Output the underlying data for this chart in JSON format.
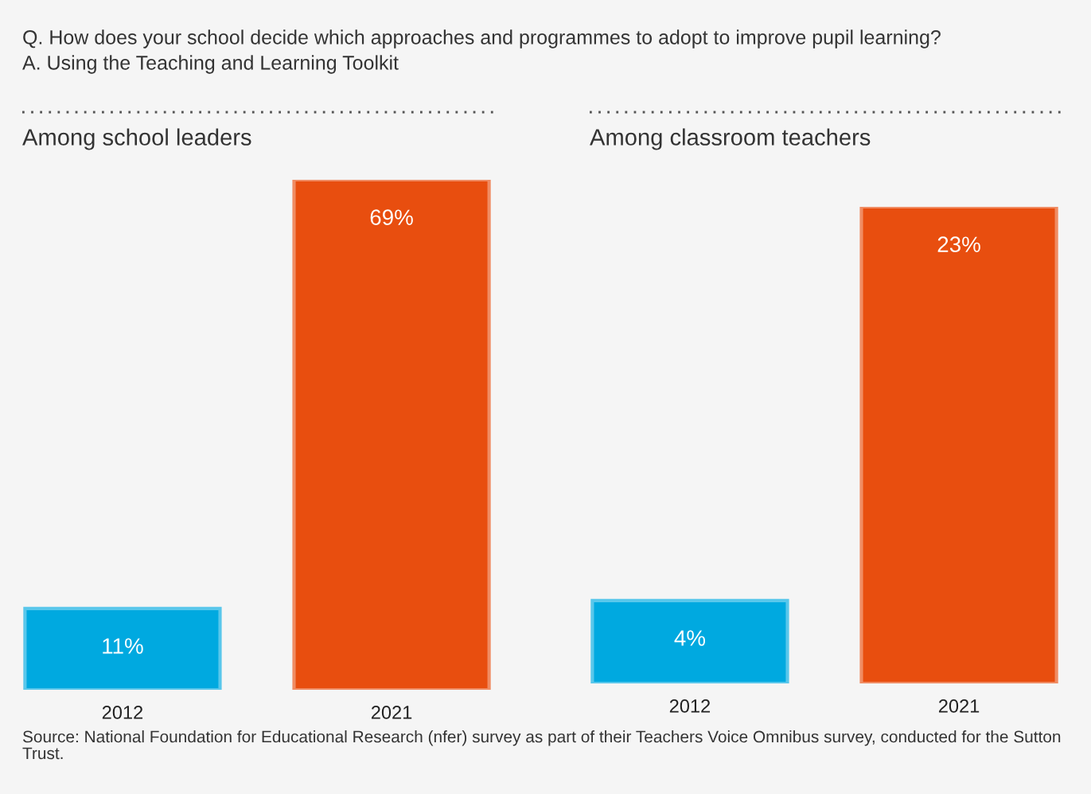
{
  "chart_data": [
    {
      "type": "bar",
      "title": "Among school leaders",
      "categories": [
        "2012",
        "2021"
      ],
      "values": [
        11,
        69
      ],
      "colors": [
        "#00a9e0",
        "#e84e0f"
      ],
      "value_labels": [
        "11%",
        "69%"
      ],
      "grid": false,
      "legend": false,
      "tick_labels": "x",
      "annotations": [
        "Q. How does your school decide which approaches and programmes to adopt to improve pupil learning?",
        "A. Using the Teaching and Learning Toolkit"
      ]
    },
    {
      "type": "bar",
      "title": "Among classroom teachers",
      "categories": [
        "2012",
        "2021"
      ],
      "values": [
        4,
        23
      ],
      "colors": [
        "#00a9e0",
        "#e84e0f"
      ],
      "value_labels": [
        "4%",
        "23%"
      ],
      "grid": false,
      "legend": false,
      "tick_labels": "x",
      "annotations": [
        "Source: National Foundation for Educational Research (nfer) survey as part of their Teachers Voice Omnibus survey, conducted for the Sutton Trust."
      ]
    }
  ]
}
